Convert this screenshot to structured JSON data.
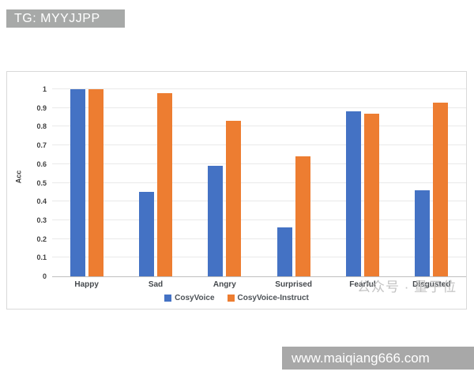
{
  "banner_top": {
    "text": "TG: MYYJJPP",
    "bg": "#a7a9a8"
  },
  "banner_bottom": {
    "text": "www.maiqiang666.com",
    "bg": "#a8a8a8"
  },
  "watermark": {
    "text": "公众号 · 量子位",
    "color": "#b9b9b9"
  },
  "chart_data": {
    "type": "bar",
    "title": "",
    "categories": [
      "Happy",
      "Sad",
      "Angry",
      "Surprised",
      "Fearful",
      "Disgusted"
    ],
    "series": [
      {
        "name": "CosyVoice",
        "color": "#4472C4",
        "values": [
          1.0,
          0.45,
          0.59,
          0.26,
          0.88,
          0.46
        ]
      },
      {
        "name": "CosyVoice-Instruct",
        "color": "#ED7D31",
        "values": [
          1.0,
          0.98,
          0.83,
          0.64,
          0.87,
          0.93
        ]
      }
    ],
    "xlabel": "",
    "ylabel": "Acc",
    "ylim": [
      0,
      1
    ],
    "yticks": [
      0,
      0.1,
      0.2,
      0.3,
      0.4,
      0.5,
      0.6,
      0.7,
      0.8,
      0.9,
      1
    ],
    "grid": true,
    "legend_position": "bottom",
    "gridline_color": "#e9e9e9",
    "axis_line_color": "#bfbfbf",
    "tick_label_color": "#404040"
  }
}
